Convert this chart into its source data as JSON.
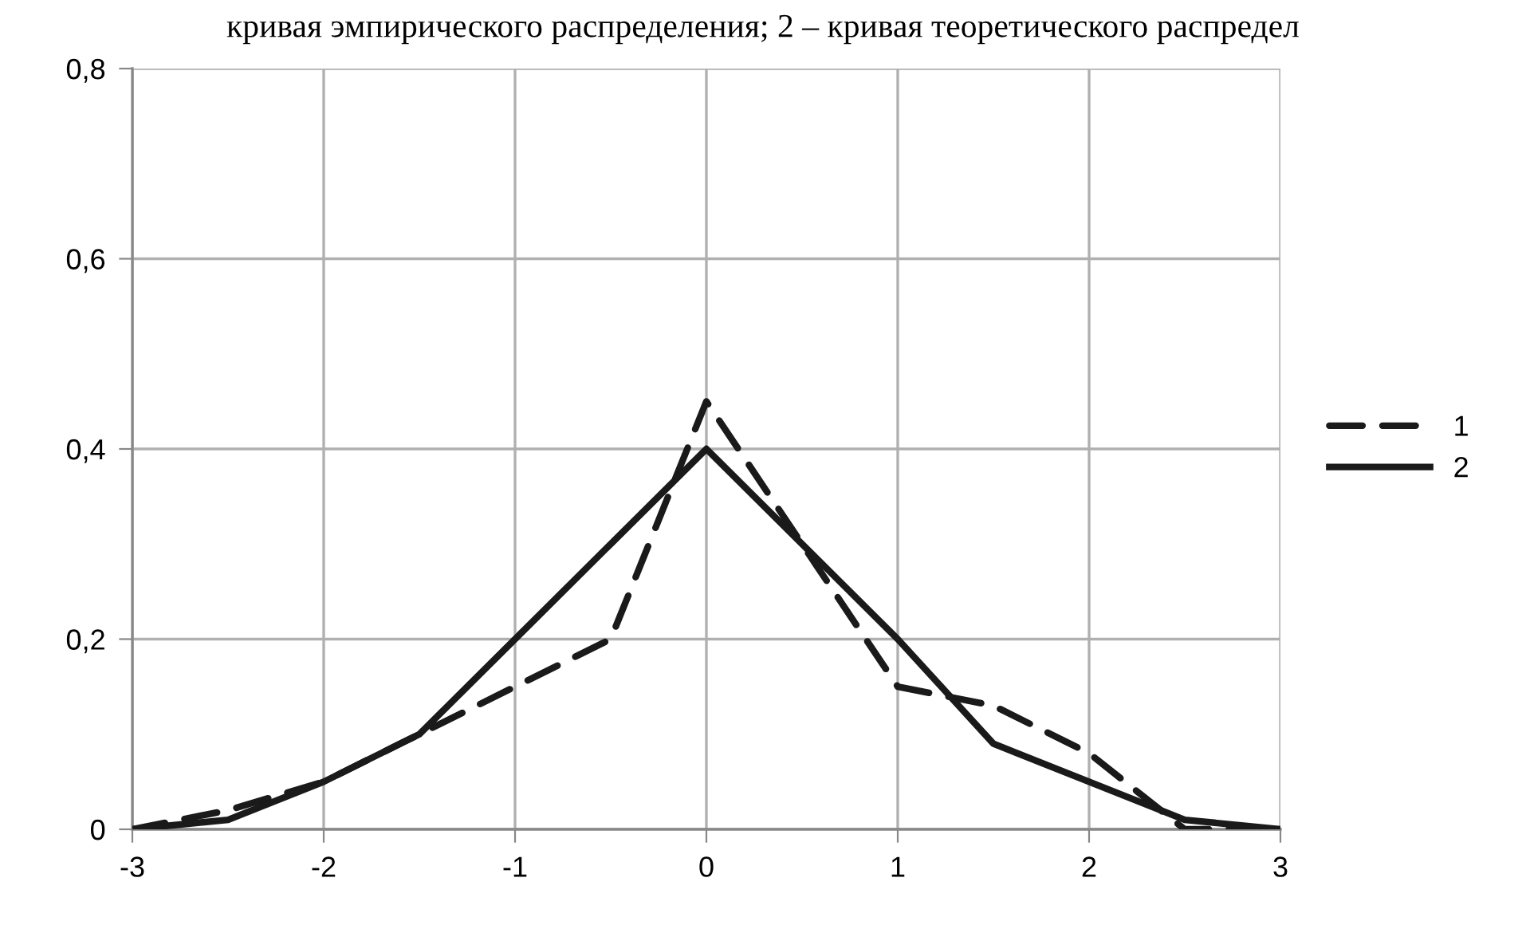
{
  "chart_data": {
    "type": "line",
    "title": "кривая эмпирического распределения; 2 – кривая теоретического распредел",
    "x": [
      -3,
      -2.5,
      -2,
      -1.5,
      -1,
      -0.5,
      0,
      0.5,
      1,
      1.5,
      2,
      2.5,
      3
    ],
    "series": [
      {
        "name": "1",
        "color": "#1a1a1a",
        "line_style": "dashed",
        "values": [
          0,
          0.02,
          0.05,
          0.1,
          0.15,
          0.2,
          0.45,
          0.3,
          0.15,
          0.13,
          0.08,
          0,
          0
        ]
      },
      {
        "name": "2",
        "color": "#1a1a1a",
        "line_style": "solid",
        "values": [
          0,
          0.01,
          0.05,
          0.1,
          0.2,
          0.3,
          0.4,
          0.3,
          0.2,
          0.09,
          0.05,
          0.01,
          0
        ]
      }
    ],
    "xlim": [
      -3,
      3
    ],
    "xticks": [
      -3,
      -2,
      -1,
      0,
      1,
      2,
      3
    ],
    "ylim": [
      0,
      0.8
    ],
    "yticks": [
      0,
      {
        "value": 0.2,
        "label": "0,2"
      },
      {
        "value": 0.4,
        "label": "0,4"
      },
      {
        "value": 0.6,
        "label": "0,6"
      },
      {
        "value": 0.8,
        "label": "0,8"
      }
    ],
    "grid": true,
    "legend": "right",
    "marker": "none"
  }
}
